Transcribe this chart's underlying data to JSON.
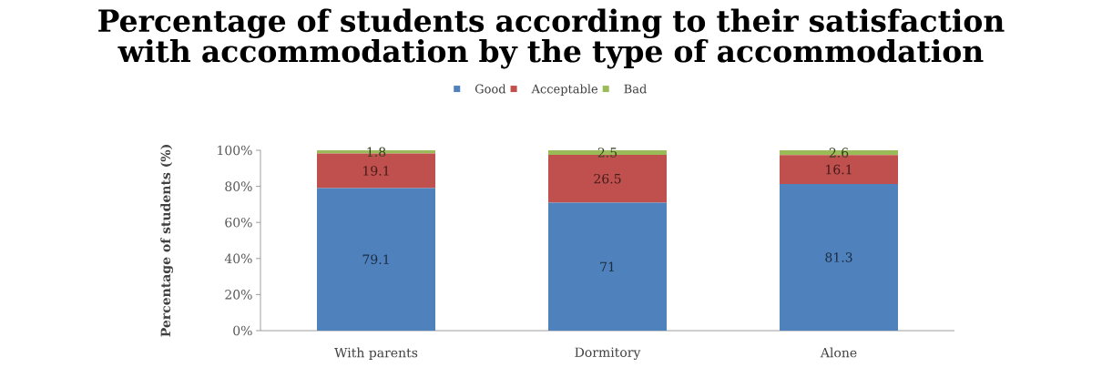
{
  "chart_data": {
    "type": "bar",
    "title": "Percentage of students according to their satisfaction with accommodation by the type of accommodation",
    "ylabel": "Percentage of students (%)",
    "categories": [
      "With parents",
      "Dormitory",
      "Alone"
    ],
    "series": [
      {
        "name": "Good",
        "color": "#4f81bd",
        "values": [
          79.1,
          71,
          81.3
        ]
      },
      {
        "name": "Acceptable",
        "color": "#c0504d",
        "values": [
          19.1,
          26.5,
          16.1
        ]
      },
      {
        "name": "Bad",
        "color": "#9bbb59",
        "values": [
          1.8,
          2.5,
          2.6
        ]
      }
    ],
    "stacked": true,
    "ylim": [
      0,
      100
    ],
    "yticks": [
      {
        "value": 0,
        "label": "0%"
      },
      {
        "value": 20,
        "label": "20%"
      },
      {
        "value": 40,
        "label": "40%"
      },
      {
        "value": 60,
        "label": "60%"
      },
      {
        "value": 80,
        "label": "80%"
      },
      {
        "value": 100,
        "label": "100%"
      }
    ],
    "legend": "top",
    "data_labels": true
  }
}
